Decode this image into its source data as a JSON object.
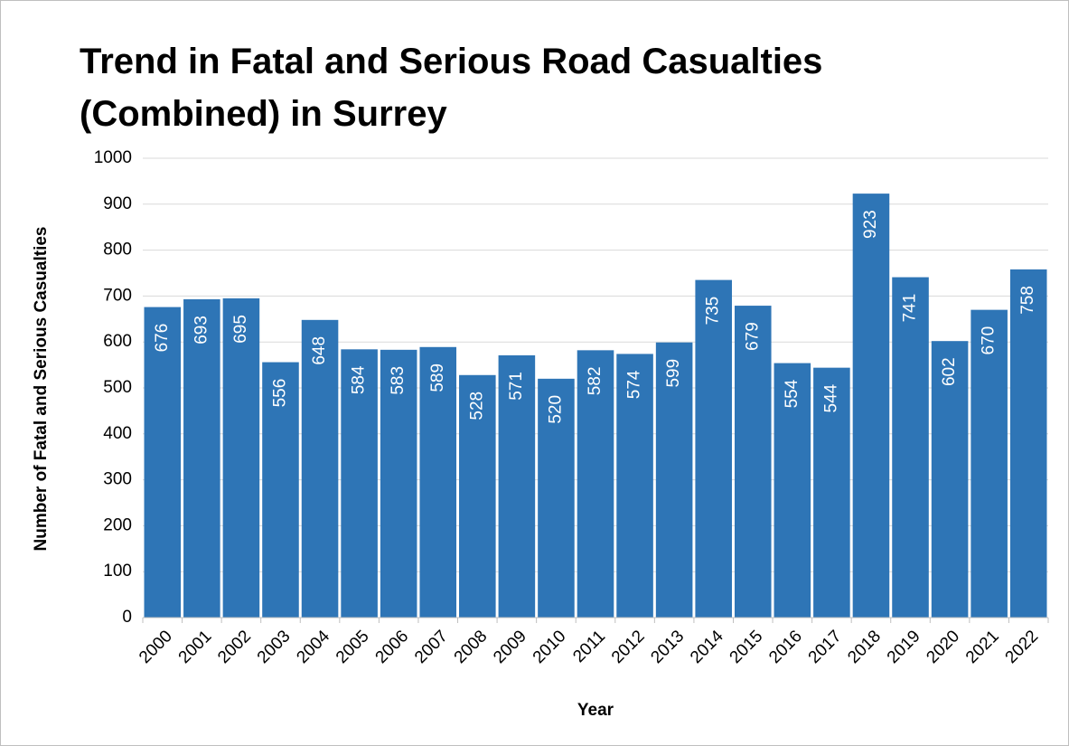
{
  "chart_data": {
    "type": "bar",
    "title": "Trend in Fatal and Serious Road Casualties (Combined) in Surrey",
    "x_label": "Year",
    "y_label": "Number of Fatal and Serious Casualties",
    "categories": [
      "2000",
      "2001",
      "2002",
      "2003",
      "2004",
      "2005",
      "2006",
      "2007",
      "2008",
      "2009",
      "2010",
      "2011",
      "2012",
      "2013",
      "2014",
      "2015",
      "2016",
      "2017",
      "2018",
      "2019",
      "2020",
      "2021",
      "2022"
    ],
    "values": [
      676,
      693,
      695,
      556,
      648,
      584,
      583,
      589,
      528,
      571,
      520,
      582,
      574,
      599,
      735,
      679,
      554,
      544,
      923,
      741,
      602,
      670,
      758
    ],
    "color": "#2e75b6",
    "ylim": [
      0,
      1000
    ],
    "yticks": [
      0,
      100,
      200,
      300,
      400,
      500,
      600,
      700,
      800,
      900,
      1000
    ],
    "grid": true
  }
}
